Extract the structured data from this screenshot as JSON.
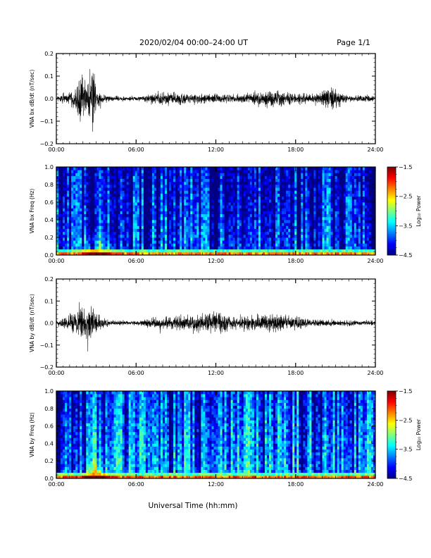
{
  "header": {
    "title": "2020/02/04  00:00–24:00 UT",
    "page_label": "Page 1/1"
  },
  "chart_data": [
    {
      "type": "line",
      "panel": "bx-waveform",
      "ylabel": "VNA bx dB/dt (nT/sec)",
      "ylim": [
        -0.2,
        0.2
      ],
      "yticks": [
        -0.2,
        -0.1,
        0.0,
        0.1,
        0.2
      ],
      "ytick_labels": [
        "−0.2",
        "−0.1",
        "0.0",
        "0.1",
        "0.2"
      ],
      "xlim": [
        0,
        24
      ],
      "xticks": [
        0,
        6,
        12,
        18,
        24
      ],
      "xtick_labels": [
        "00:00",
        "06:00",
        "12:00",
        "18:00",
        "24:00"
      ],
      "series": [
        {
          "x": [
            0,
            1.5,
            1.8,
            2.3,
            2.75,
            3.0,
            4.0,
            6.0,
            8.0,
            9.0,
            12.0,
            13.5,
            16.5,
            19.5,
            20.8,
            22.0,
            24.0
          ],
          "amplitude": [
            0.008,
            0.05,
            0.12,
            0.06,
            0.2,
            0.04,
            0.012,
            0.01,
            0.03,
            0.025,
            0.02,
            0.018,
            0.04,
            0.018,
            0.05,
            0.015,
            0.012
          ]
        }
      ]
    },
    {
      "type": "heatmap",
      "panel": "bx-spectrogram",
      "ylabel": "VNA bx Freq (Hz)",
      "ylim": [
        0.0,
        1.0
      ],
      "yticks": [
        0.0,
        0.2,
        0.4,
        0.6,
        0.8,
        1.0
      ],
      "ytick_labels": [
        "0.0",
        "0.2",
        "0.4",
        "0.6",
        "0.8",
        "1.0"
      ],
      "xlim": [
        0,
        24
      ],
      "xticks": [
        0,
        6,
        12,
        18,
        24
      ],
      "xtick_labels": [
        "00:00",
        "06:00",
        "12:00",
        "18:00",
        "24:00"
      ],
      "colorbar": {
        "label": "Log₁₀ Power",
        "range": [
          -4.5,
          -1.5
        ],
        "ticks": [
          -1.5,
          -2.5,
          -3.5,
          -4.5
        ],
        "tick_labels": [
          "−1.5",
          "−2.5",
          "−3.5",
          "−4.5"
        ]
      },
      "low_freq_band_power": -2.3,
      "background_power": -3.9
    },
    {
      "type": "line",
      "panel": "by-waveform",
      "ylabel": "VNA by dB/dt (nT/sec)",
      "ylim": [
        -0.2,
        0.2
      ],
      "yticks": [
        -0.2,
        -0.1,
        0.0,
        0.1,
        0.2
      ],
      "ytick_labels": [
        "−0.2",
        "−0.1",
        "0.0",
        "0.1",
        "0.2"
      ],
      "xlim": [
        0,
        24
      ],
      "xticks": [
        0,
        6,
        12,
        18,
        24
      ],
      "xtick_labels": [
        "00:00",
        "06:00",
        "12:00",
        "18:00",
        "24:00"
      ],
      "series": [
        {
          "x": [
            0,
            1.5,
            1.8,
            2.3,
            2.75,
            3.0,
            4.0,
            6.0,
            8.0,
            10.5,
            12.0,
            13.5,
            16.5,
            19.5,
            22.0,
            24.0
          ],
          "amplitude": [
            0.008,
            0.05,
            0.11,
            0.05,
            0.11,
            0.04,
            0.012,
            0.01,
            0.03,
            0.04,
            0.06,
            0.025,
            0.045,
            0.015,
            0.012,
            0.012
          ]
        }
      ]
    },
    {
      "type": "heatmap",
      "panel": "by-spectrogram",
      "ylabel": "VNA by Freq (Hz)",
      "ylim": [
        0.0,
        1.0
      ],
      "yticks": [
        0.0,
        0.2,
        0.4,
        0.6,
        0.8,
        1.0
      ],
      "ytick_labels": [
        "0.0",
        "0.2",
        "0.4",
        "0.6",
        "0.8",
        "1.0"
      ],
      "xlim": [
        0,
        24
      ],
      "xticks": [
        0,
        6,
        12,
        18,
        24
      ],
      "xtick_labels": [
        "00:00",
        "06:00",
        "12:00",
        "18:00",
        "24:00"
      ],
      "colorbar": {
        "label": "Log₁₀ Power",
        "range": [
          -4.5,
          -1.5
        ],
        "ticks": [
          -1.5,
          -2.5,
          -3.5,
          -4.5
        ],
        "tick_labels": [
          "−1.5",
          "−2.5",
          "−3.5",
          "−4.5"
        ]
      },
      "low_freq_band_power": -2.2,
      "background_power": -3.6
    }
  ],
  "xaxis_title": "Universal Time (hh:mm)"
}
